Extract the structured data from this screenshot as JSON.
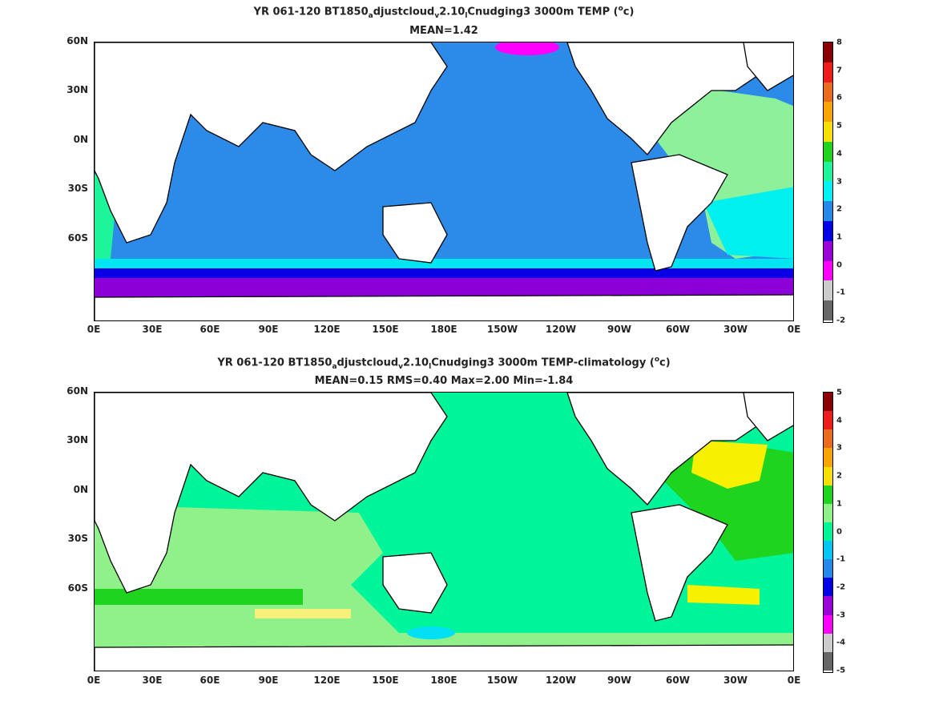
{
  "panels": [
    {
      "title_parts": {
        "a": "YR 061-120 BT1850",
        "sub1": "a",
        "b": "djustcloud",
        "sub2": "v",
        "c": "2.10",
        "sub3": "l",
        "d": "Cnudging3 3000m TEMP (",
        "sup": "o",
        "e": "c)"
      },
      "stats": "MEAN=1.42",
      "colorbar_labels": [
        "8",
        "7",
        "6",
        "5",
        "4",
        "3",
        "2",
        "1",
        "0",
        "-1",
        "-2"
      ],
      "colorbar_colors": [
        "#8b0000",
        "#ee1c1c",
        "#ea6a1e",
        "#f7a500",
        "#f7e000",
        "#1ed41e",
        "#1ef59a",
        "#00f2f2",
        "#2489e8",
        "#0000e6",
        "#9b00d9",
        "#ff00ff",
        "#cccccc",
        "#666666"
      ],
      "ocean_color": "#2c8be8",
      "description_cells": []
    },
    {
      "title_parts": {
        "a": "YR 061-120 BT1850",
        "sub1": "a",
        "b": "djustcloud",
        "sub2": "v",
        "c": "2.10",
        "sub3": "l",
        "d": "Cnudging3 3000m TEMP-climatology (",
        "sup": "o",
        "e": "c)"
      },
      "stats": "MEAN=0.15   RMS=0.40   Max=2.00   Min=-1.84",
      "colorbar_labels": [
        "5",
        "4",
        "3",
        "2",
        "1",
        "0",
        "-1",
        "-2",
        "-3",
        "-4",
        "-5"
      ],
      "colorbar_colors": [
        "#8b0000",
        "#ee1c1c",
        "#ea6a1e",
        "#f7a500",
        "#f7e000",
        "#1ed41e",
        "#90f08a",
        "#00f59a",
        "#00c8f2",
        "#2489e8",
        "#0000e6",
        "#9b00d9",
        "#ff00ff",
        "#cccccc",
        "#666666"
      ],
      "ocean_color": "#00f59a"
    }
  ],
  "x_ticks": [
    "0E",
    "30E",
    "60E",
    "90E",
    "120E",
    "150E",
    "180E",
    "150W",
    "120W",
    "90W",
    "60W",
    "30W",
    "0E"
  ],
  "y_ticks": [
    "60N",
    "30N",
    "0N",
    "30S",
    "60S"
  ]
}
